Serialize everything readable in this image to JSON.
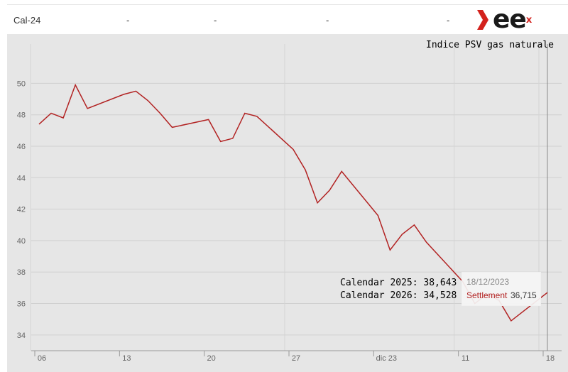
{
  "header": {
    "row_label": "Cal-24",
    "cells": [
      "-",
      "-",
      "-",
      "-"
    ]
  },
  "chart_data": {
    "type": "line",
    "title": "Indice PSV gas naturale",
    "xlabel": "",
    "ylabel": "",
    "ylim": [
      33,
      52.5
    ],
    "yticks": [
      34,
      36,
      38,
      40,
      42,
      44,
      46,
      48,
      50
    ],
    "x_tick_labels": [
      "06",
      "13",
      "20",
      "27",
      "dic 23",
      "11",
      "18"
    ],
    "series": [
      {
        "color": "#b22222",
        "x": [
          "2023-11-06",
          "2023-11-07",
          "2023-11-08",
          "2023-11-09",
          "2023-11-10",
          "2023-11-13",
          "2023-11-14",
          "2023-11-15",
          "2023-11-16",
          "2023-11-17",
          "2023-11-20",
          "2023-11-21",
          "2023-11-22",
          "2023-11-23",
          "2023-11-24",
          "2023-11-27",
          "2023-11-28",
          "2023-11-29",
          "2023-11-30",
          "2023-12-01",
          "2023-12-04",
          "2023-12-05",
          "2023-12-06",
          "2023-12-07",
          "2023-12-08",
          "2023-12-11",
          "2023-12-12",
          "2023-12-13",
          "2023-12-14",
          "2023-12-15",
          "2023-12-18"
        ],
        "values": [
          47.4,
          48.1,
          47.8,
          49.9,
          48.4,
          49.3,
          49.5,
          48.9,
          48.1,
          47.2,
          47.7,
          46.3,
          46.5,
          48.1,
          47.9,
          45.8,
          44.5,
          42.4,
          43.2,
          44.4,
          41.6,
          39.4,
          40.4,
          41.0,
          39.9,
          37.4,
          36.0,
          36.6,
          36.2,
          34.9,
          36.7
        ]
      }
    ],
    "annotations": [
      "Calendar 2025: 38,643",
      "Calendar 2026: 34,528"
    ],
    "tooltip": {
      "date": "18/12/2023",
      "label": "Settlement",
      "value": "36,715"
    },
    "grid": true,
    "legend": "none"
  }
}
